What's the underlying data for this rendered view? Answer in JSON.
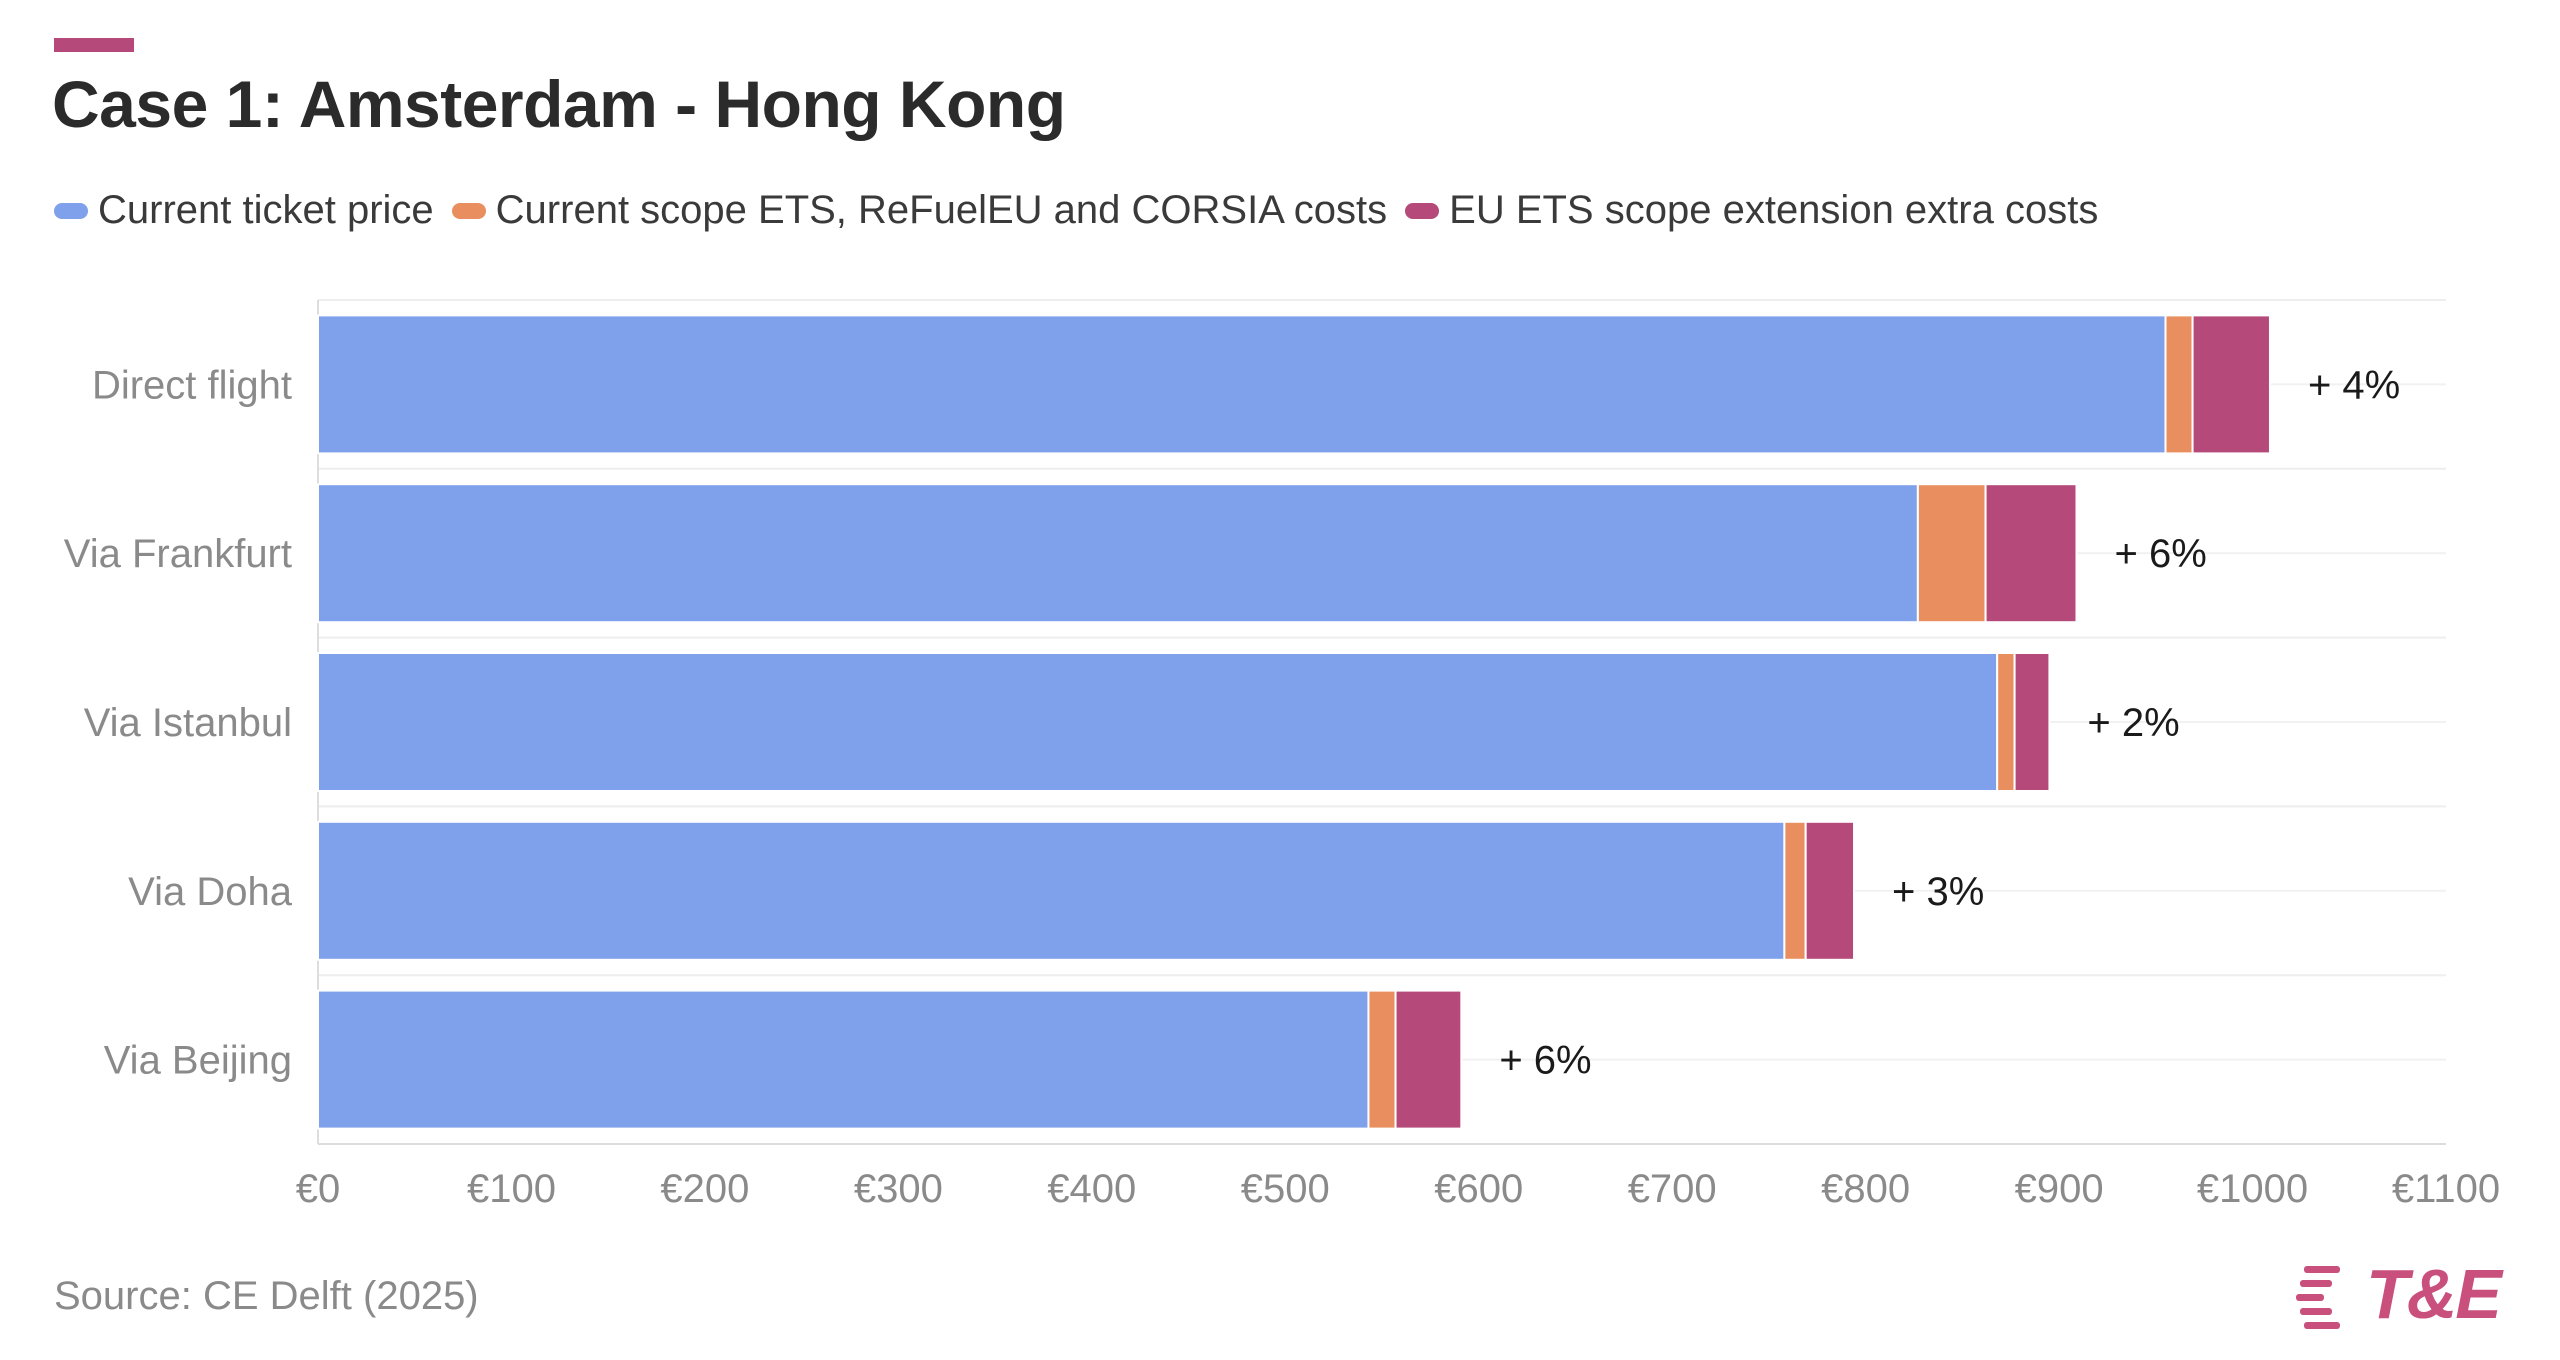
{
  "header": {
    "title": "Case 1: Amsterdam - Hong Kong"
  },
  "legend": [
    {
      "label": "Current ticket price",
      "color": "#7fa0ea"
    },
    {
      "label": "Current scope ETS, ReFuelEU and CORSIA costs",
      "color": "#e98f5f"
    },
    {
      "label": "EU ETS scope extension extra costs",
      "color": "#b5497a"
    }
  ],
  "chart_data": {
    "type": "bar",
    "orientation": "horizontal",
    "stacked": true,
    "title": "Case 1: Amsterdam - Hong Kong",
    "categories": [
      "Direct flight",
      "Via Frankfurt",
      "Via Istanbul",
      "Via Doha",
      "Via Beijing"
    ],
    "series": [
      {
        "name": "Current ticket price",
        "color": "#7fa0ea",
        "values": [
          955,
          827,
          868,
          758,
          543
        ]
      },
      {
        "name": "Current scope ETS, ReFuelEU and CORSIA costs",
        "color": "#e98f5f",
        "values": [
          14,
          35,
          9,
          11,
          14
        ]
      },
      {
        "name": "EU ETS scope extension extra costs",
        "color": "#b5497a",
        "values": [
          40,
          47,
          18,
          25,
          34
        ]
      }
    ],
    "annotations": [
      "+ 4%",
      "+ 6%",
      "+ 2%",
      "+ 3%",
      "+ 6%"
    ],
    "xlim": [
      0,
      1100
    ],
    "xticks": [
      0,
      100,
      200,
      300,
      400,
      500,
      600,
      700,
      800,
      900,
      1000,
      1100
    ],
    "xtick_labels": [
      "€0",
      "€100",
      "€200",
      "€300",
      "€400",
      "€500",
      "€600",
      "€700",
      "€800",
      "€900",
      "€1000",
      "€1100"
    ],
    "xlabel": "",
    "ylabel": "",
    "grid": true
  },
  "footer": {
    "source": "Source: CE Delft (2025)",
    "logo_text": "T&E"
  }
}
